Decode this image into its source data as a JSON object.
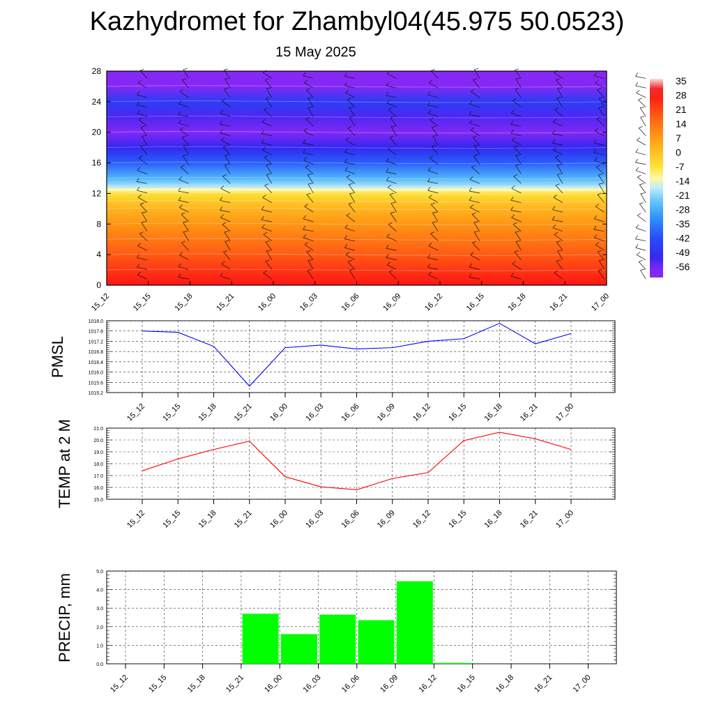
{
  "title": "Kazhydromet for Zhambyl04(45.975 50.0523)",
  "date": "15 May 2025",
  "time_labels": [
    "15_12",
    "15_15",
    "15_18",
    "15_21",
    "16_00",
    "16_03",
    "16_06",
    "16_09",
    "16_12",
    "16_15",
    "16_18",
    "16_21",
    "17_00"
  ],
  "chart_data": [
    {
      "type": "heatmap",
      "ylim": [
        0,
        28
      ],
      "yticks": [
        "0",
        "4",
        "8",
        "12",
        "16",
        "20",
        "24",
        "28"
      ],
      "x": [
        "15_12",
        "15_15",
        "15_18",
        "15_21",
        "16_00",
        "16_03",
        "16_06",
        "16_09",
        "16_12",
        "16_15",
        "16_18",
        "16_21",
        "17_00"
      ],
      "colorbar_labels": [
        "35",
        "28",
        "21",
        "14",
        "7",
        "0",
        "-7",
        "-14",
        "-21",
        "-28",
        "-35",
        "-42",
        "-49",
        "-56"
      ],
      "value_range": [
        -60,
        38
      ],
      "temperature_profile": {
        "levels": [
          0,
          2,
          4,
          6,
          8,
          10,
          11,
          12,
          12.5,
          13,
          14,
          16,
          18,
          20,
          22,
          24,
          26,
          28
        ],
        "values": [
          30,
          25,
          20,
          15,
          10,
          4,
          0,
          -5,
          -12,
          -18,
          -25,
          -38,
          -50,
          -56,
          -52,
          -45,
          -57,
          -58
        ]
      },
      "overlay": "wind barbs"
    },
    {
      "type": "line",
      "ylabel": "PMSL",
      "ylim": [
        1015.2,
        1018.0
      ],
      "yticks": [
        "1015.2",
        "1015.6",
        "1016.0",
        "1016.4",
        "1016.8",
        "1017.2",
        "1017.6",
        "1018.0"
      ],
      "series": [
        {
          "color": "#0000ff",
          "values": [
            1017.6,
            1017.55,
            1017.0,
            1015.45,
            1016.95,
            1017.05,
            1016.9,
            1016.95,
            1017.2,
            1017.3,
            1017.9,
            1017.1,
            1017.5
          ]
        }
      ]
    },
    {
      "type": "line",
      "ylabel": "TEMP at 2 M",
      "ylim": [
        15.0,
        21.0
      ],
      "yticks": [
        "15.0",
        "16.0",
        "17.0",
        "18.0",
        "19.0",
        "20.0",
        "21.0"
      ],
      "series": [
        {
          "color": "#ff0000",
          "values": [
            17.4,
            18.4,
            19.2,
            19.9,
            16.9,
            16.05,
            15.8,
            16.75,
            17.25,
            19.95,
            20.65,
            20.1,
            19.2
          ]
        }
      ]
    },
    {
      "type": "bar",
      "ylabel": "PRECIP, mm",
      "ylim": [
        0.0,
        5.0
      ],
      "yticks": [
        "0.0",
        "1.0",
        "2.0",
        "3.0",
        "4.0",
        "5.0"
      ],
      "categories": [
        "15_12",
        "15_15",
        "15_18",
        "15_21",
        "16_00",
        "16_03",
        "16_06",
        "16_09",
        "16_12",
        "16_15",
        "16_18",
        "16_21",
        "17_00"
      ],
      "color": "#00ff00",
      "values": [
        0,
        0,
        0,
        0,
        2.7,
        1.6,
        2.65,
        2.35,
        4.45,
        0.05,
        0,
        0,
        0
      ]
    }
  ]
}
